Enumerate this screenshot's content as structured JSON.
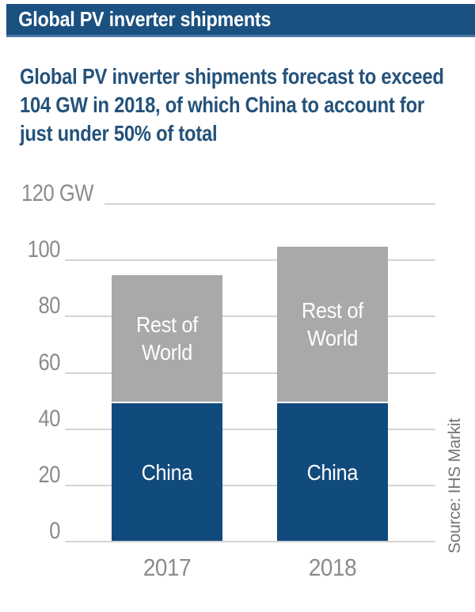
{
  "header": {
    "title": "Global PV inverter shipments"
  },
  "subtitle": {
    "lines": [
      "Global PV inverter shipments forecast to exceed",
      "104 GW in 2018, of which China to account for",
      "just under 50% of total"
    ]
  },
  "chart_data": {
    "type": "bar",
    "stacked": true,
    "title": "Global PV inverter shipments",
    "unit": "GW",
    "categories": [
      "2017",
      "2018"
    ],
    "series": [
      {
        "name": "China",
        "values": [
          49,
          49
        ]
      },
      {
        "name": "Rest of World",
        "values": [
          45.5,
          55.5
        ]
      }
    ],
    "totals_gw": [
      94.5,
      104.5
    ],
    "yticks": [
      0,
      20,
      40,
      60,
      80,
      100,
      120
    ],
    "ytick_labels": [
      "0",
      "20",
      "40",
      "60",
      "80",
      "100",
      "120 GW"
    ],
    "ylim": [
      0,
      120
    ],
    "grid": "horizontal",
    "legend": "labels-inside-bars",
    "xlabel": "",
    "ylabel": "GW"
  },
  "source": {
    "text": "Source: IHS Markit"
  },
  "colors": {
    "header_bg": "#1b5180",
    "header_underline": "#4b79a5",
    "subtitle_text": "#24527a",
    "china_bar": "#114a7c",
    "rest_of_world_bar": "#a8a9ab",
    "bar_label_text": "#ffffff",
    "axis_text": "#8b8b8b",
    "gridline": "#d4d4d4",
    "source_text": "#757575"
  }
}
